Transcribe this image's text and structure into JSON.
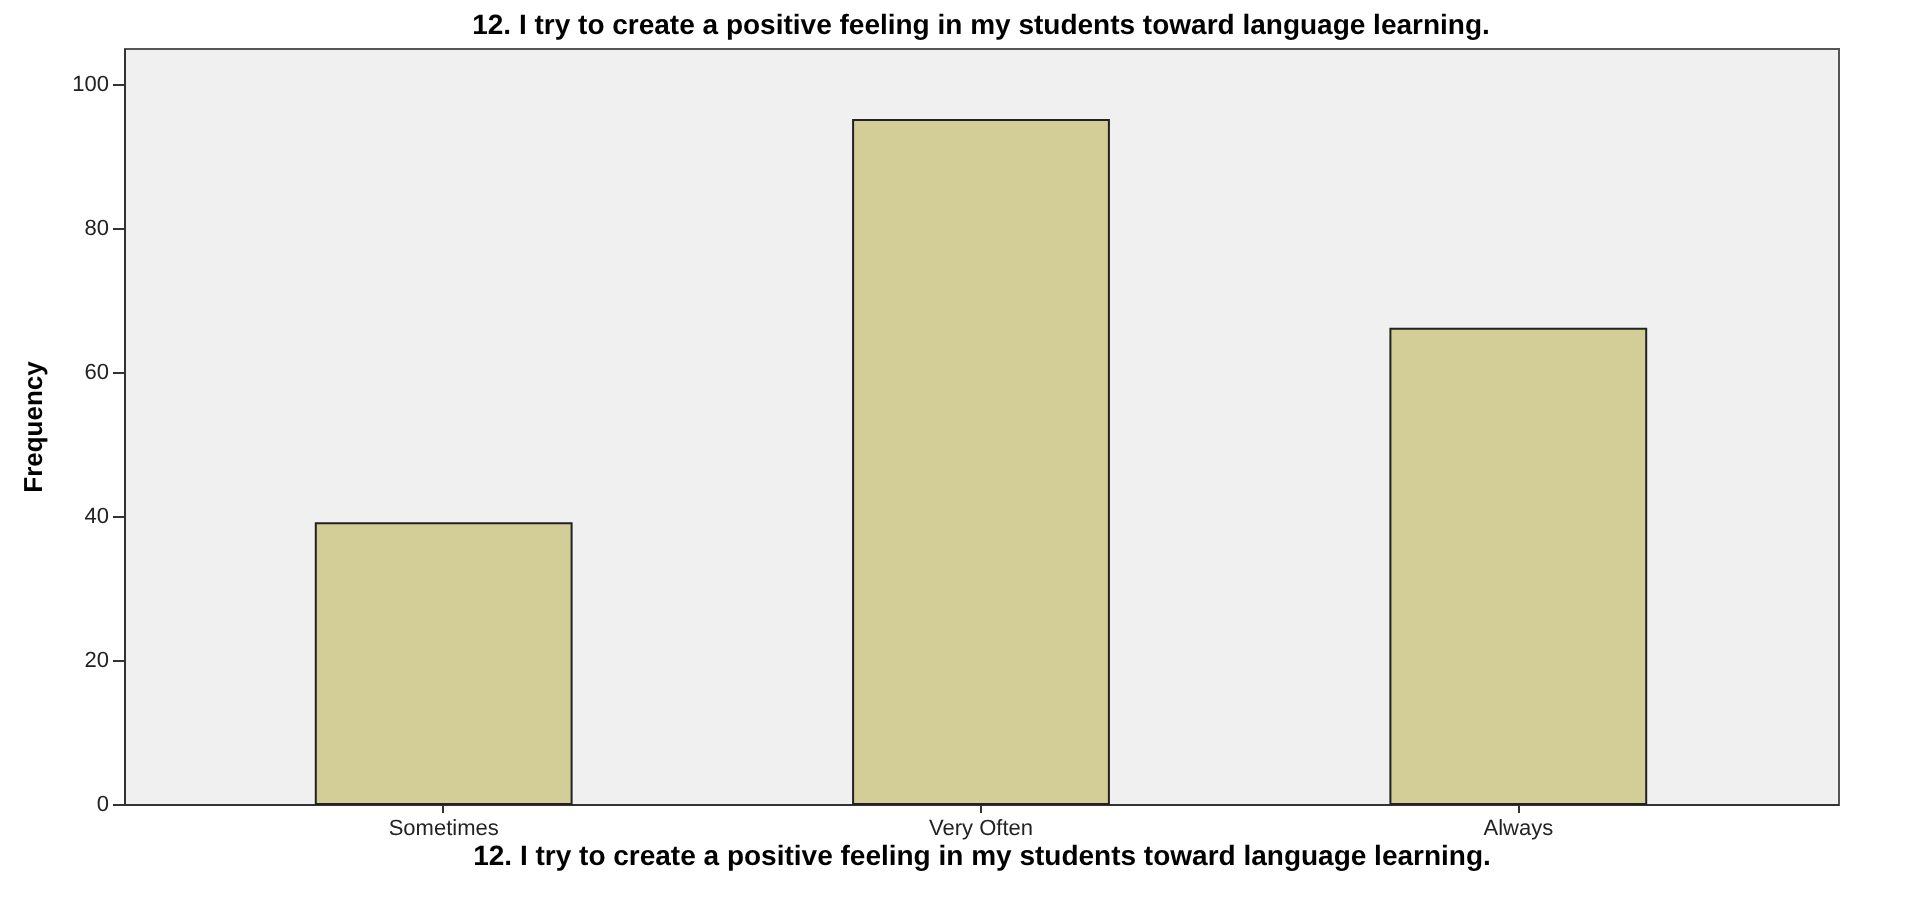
{
  "chart_data": {
    "type": "bar",
    "title": "12. I try to create a positive feeling in my students toward language learning.",
    "xlabel": "12. I try to create a positive feeling in my students toward language learning.",
    "ylabel": "Frequency",
    "categories": [
      "Sometimes",
      "Very Often",
      "Always"
    ],
    "values": [
      39,
      95,
      66
    ],
    "color": "#d3ce97",
    "ylim": [
      0,
      105
    ],
    "yticks": [
      0,
      20,
      40,
      60,
      80,
      100
    ],
    "grid": false
  }
}
